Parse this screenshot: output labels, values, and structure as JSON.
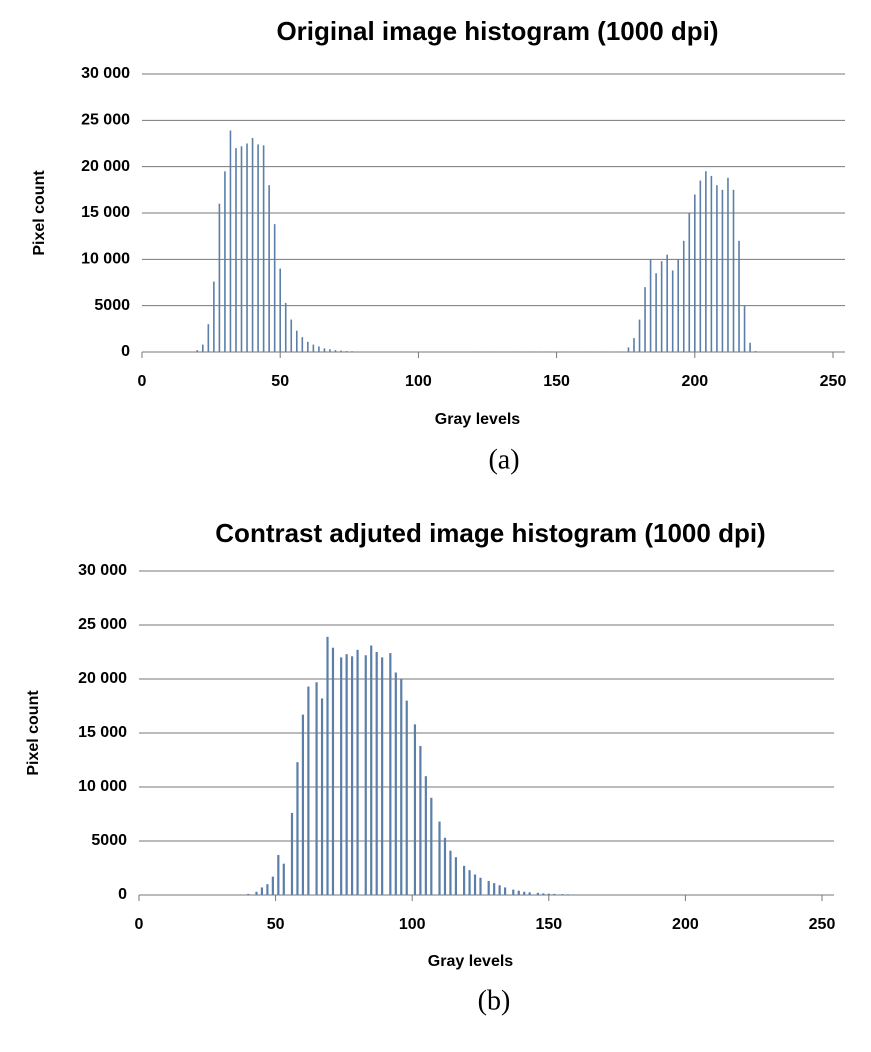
{
  "chart_data": [
    {
      "type": "bar",
      "title": "Original image histogram (1000 dpi)",
      "xlabel": "Gray levels",
      "ylabel": "Pixel count",
      "caption": "(a)",
      "x": [
        20,
        22,
        24,
        26,
        28,
        30,
        32,
        34,
        36,
        38,
        40,
        42,
        44,
        46,
        48,
        50,
        52,
        54,
        56,
        58,
        60,
        62,
        64,
        66,
        68,
        70,
        72,
        74,
        76,
        78,
        80,
        82,
        84,
        86,
        88,
        90,
        92,
        94,
        96,
        98,
        100,
        102,
        104,
        106,
        108,
        110,
        112,
        114,
        116,
        118,
        120,
        122,
        124,
        126,
        128,
        130,
        132,
        134,
        136,
        138,
        140,
        142,
        144,
        146,
        148,
        150,
        152,
        154,
        156,
        158,
        160,
        162,
        164,
        166,
        168,
        170,
        172,
        174,
        176,
        178,
        180,
        182,
        184,
        186,
        188,
        190,
        192,
        194,
        196,
        198,
        200,
        202,
        204,
        206,
        208,
        210,
        212,
        214,
        216,
        218,
        220,
        222
      ],
      "values": [
        200,
        800,
        3000,
        7600,
        16000,
        19500,
        23900,
        22000,
        22200,
        22500,
        23100,
        22400,
        22300,
        18000,
        13800,
        9000,
        5300,
        3500,
        2300,
        1600,
        1100,
        800,
        600,
        400,
        300,
        200,
        150,
        100,
        80,
        50,
        20,
        20,
        20,
        20,
        20,
        20,
        20,
        20,
        20,
        20,
        20,
        20,
        20,
        20,
        20,
        20,
        20,
        20,
        20,
        20,
        60,
        60,
        60,
        60,
        60,
        60,
        60,
        60,
        60,
        60,
        60,
        60,
        60,
        60,
        60,
        60,
        60,
        60,
        60,
        60,
        60,
        60,
        60,
        60,
        60,
        60,
        60,
        60,
        500,
        1500,
        3500,
        7000,
        10000,
        8500,
        9800,
        10500,
        8800,
        10000,
        12000,
        15000,
        17000,
        18500,
        19500,
        19000,
        18000,
        17500,
        18800,
        17500,
        12000,
        5000,
        1000,
        100
      ],
      "color": "#5b7fa8",
      "xlim": [
        0,
        250
      ],
      "xticks": [
        0,
        50,
        100,
        150,
        200,
        250
      ],
      "ylim": [
        0,
        30000
      ],
      "yticks": [
        0,
        5000,
        {
          "value": 10000,
          "label": "10 000"
        },
        {
          "value": 15000,
          "label": "15 000"
        },
        {
          "value": 20000,
          "label": "20 000"
        },
        {
          "value": 25000,
          "label": "25 000"
        },
        {
          "value": 30000,
          "label": "30 000"
        }
      ],
      "grid": true
    },
    {
      "type": "bar",
      "title": "Contrast adjuted image histogram (1000 dpi)",
      "xlabel": "Gray levels",
      "ylabel": "Pixel count",
      "caption": "(b)",
      "x": [
        40,
        43,
        45,
        47,
        49,
        51,
        53,
        56,
        58,
        60,
        62,
        65,
        67,
        69,
        71,
        74,
        76,
        78,
        80,
        83,
        85,
        87,
        89,
        92,
        94,
        96,
        98,
        101,
        103,
        105,
        107,
        110,
        112,
        114,
        116,
        119,
        121,
        123,
        125,
        128,
        130,
        132,
        134,
        137,
        139,
        141,
        143,
        146,
        148,
        150,
        152,
        155,
        157,
        159,
        161,
        164,
        166,
        168,
        170
      ],
      "values": [
        100,
        300,
        700,
        1000,
        1700,
        3700,
        2900,
        7600,
        12300,
        16700,
        19300,
        19700,
        18200,
        23900,
        22900,
        22000,
        22300,
        22100,
        22700,
        22200,
        23100,
        22500,
        22000,
        22400,
        20600,
        20000,
        18000,
        15800,
        13800,
        11000,
        9000,
        6800,
        5300,
        4100,
        3500,
        2700,
        2300,
        1900,
        1600,
        1300,
        1100,
        900,
        700,
        500,
        400,
        300,
        250,
        200,
        150,
        120,
        100,
        80,
        60,
        50,
        40,
        30,
        20,
        20,
        10
      ],
      "color": "#5b7fa8",
      "xlim": [
        0,
        250
      ],
      "xticks": [
        0,
        50,
        100,
        150,
        200,
        250
      ],
      "ylim": [
        0,
        30000
      ],
      "yticks": [
        0,
        5000,
        {
          "value": 10000,
          "label": "10 000"
        },
        {
          "value": 15000,
          "label": "15 000"
        },
        {
          "value": 20000,
          "label": "20 000"
        },
        {
          "value": 25000,
          "label": "25 000"
        },
        {
          "value": 30000,
          "label": "30 000"
        }
      ],
      "grid": true
    }
  ]
}
